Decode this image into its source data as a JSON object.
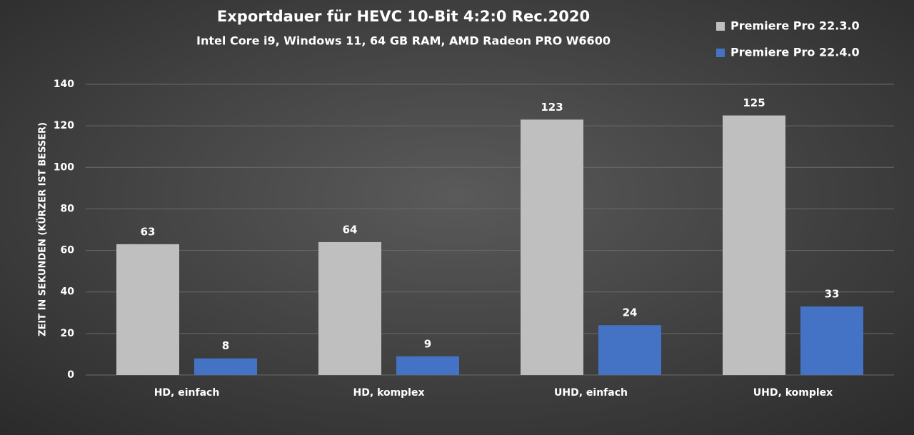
{
  "chart_data": {
    "type": "bar",
    "title": "Exportdauer für HEVC 10-Bit 4:2:0 Rec.2020",
    "subtitle": "Intel Core i9, Windows 11, 64 GB RAM, AMD Radeon PRO W6600",
    "y_label": "ZEIT IN SEKUNDEN (KÜRZER IST BESSER)",
    "categories": [
      "HD, einfach",
      "HD, komplex",
      "UHD, einfach",
      "UHD, komplex"
    ],
    "series": [
      {
        "name": "Premiere Pro 22.3.0",
        "color": "#bfbfbf",
        "values": [
          63,
          64,
          123,
          125
        ]
      },
      {
        "name": "Premiere Pro 22.4.0",
        "color": "#4472c4",
        "values": [
          8,
          9,
          24,
          33
        ]
      }
    ],
    "ylim": [
      0,
      140
    ],
    "yticks": [
      0,
      20,
      40,
      60,
      80,
      100,
      120,
      140
    ],
    "grid": true,
    "legend": "top-right"
  }
}
